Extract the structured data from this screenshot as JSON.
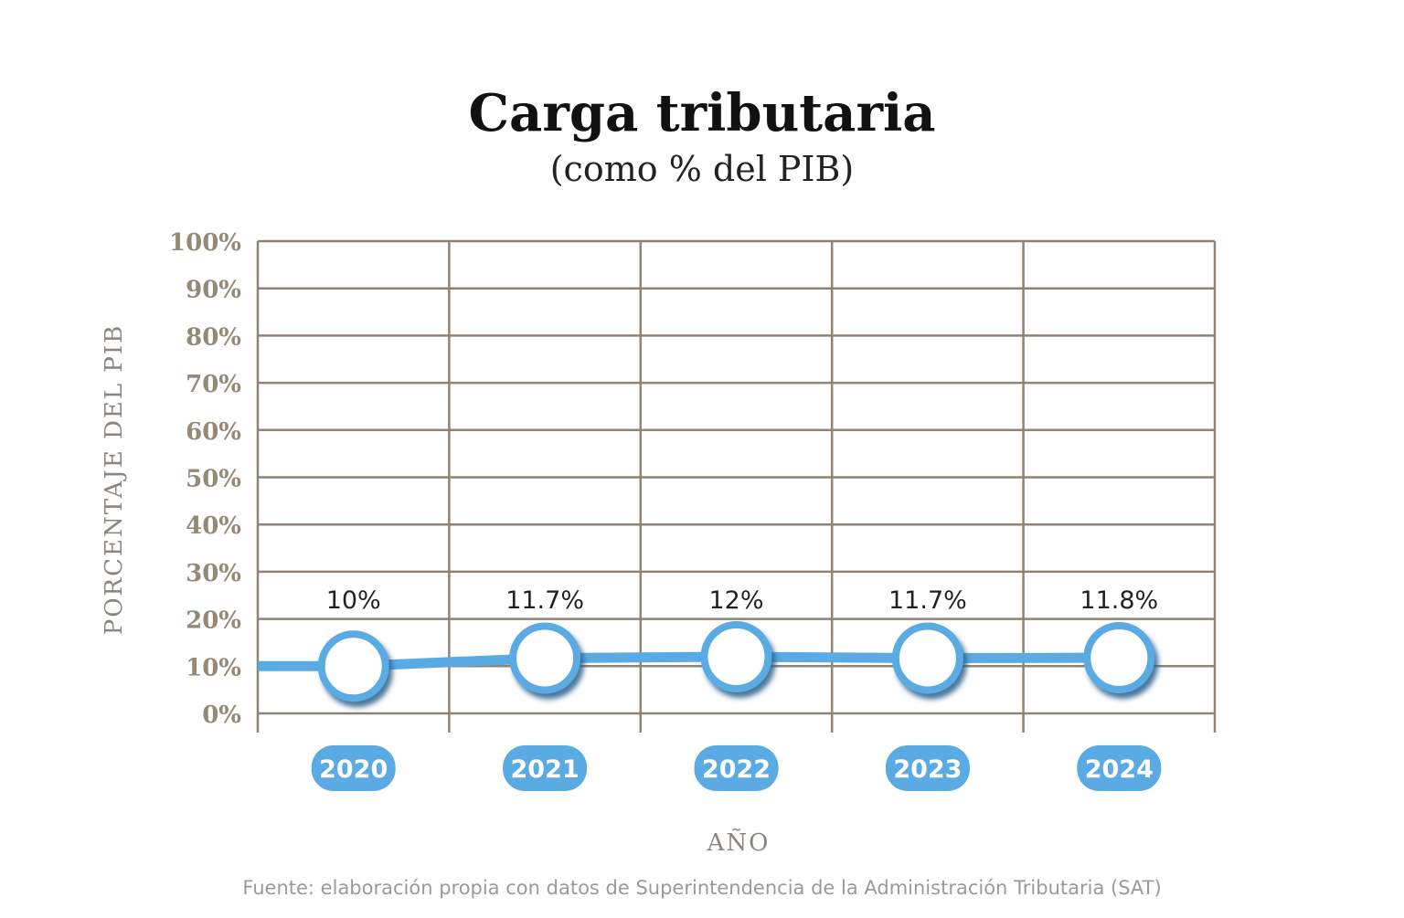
{
  "chart_data": {
    "type": "line",
    "title": "Carga tributaria",
    "subtitle": "(como % del PIB)",
    "xlabel": "AÑO",
    "ylabel": "PORCENTAJE DEL PIB",
    "categories": [
      "2020",
      "2021",
      "2022",
      "2023",
      "2024"
    ],
    "values": [
      10,
      11.7,
      12,
      11.7,
      11.8
    ],
    "data_labels": [
      "10%",
      "11.7%",
      "12%",
      "11.7%",
      "11.8%"
    ],
    "ylim": [
      0,
      100
    ],
    "yticks": [
      "0%",
      "10%",
      "20%",
      "30%",
      "40%",
      "50%",
      "60%",
      "70%",
      "80%",
      "90%",
      "100%"
    ],
    "grid": true,
    "source": "Fuente: elaboración propia con datos de Superintendencia de la Administración Tributaria (SAT)",
    "colors": {
      "line": "#5aaae3",
      "grid": "#8f8374",
      "tick_text": "#948876",
      "marker_fill": "#ffffff",
      "marker_shadow": "#2a5f8a"
    }
  }
}
